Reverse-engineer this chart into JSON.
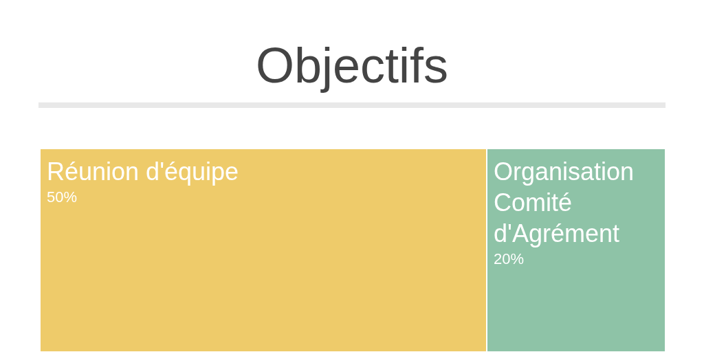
{
  "chart_data": {
    "type": "other",
    "title": "Objectifs",
    "categories": [
      "Réunion d'équipe",
      "Organisation Comité d'Agrément"
    ],
    "values": [
      50,
      20
    ],
    "value_labels": [
      "50%",
      "20%"
    ],
    "colors": [
      "#eecb6a",
      "#8ec3a7"
    ]
  }
}
